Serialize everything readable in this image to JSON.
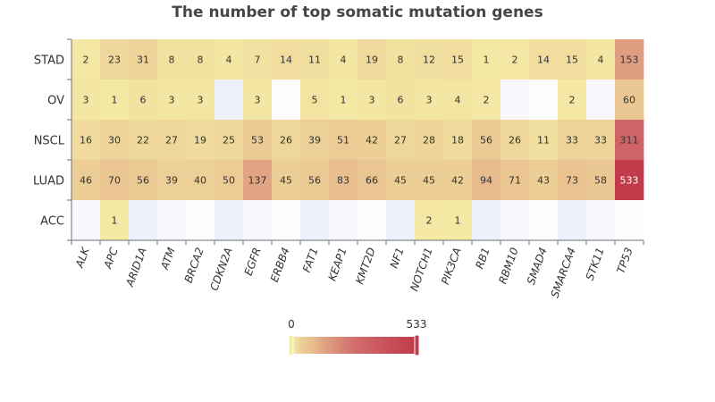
{
  "chart_data": {
    "type": "heatmap",
    "title": "The number of top somatic mutation genes",
    "x_categories": [
      "ALK",
      "APC",
      "ARID1A",
      "ATM",
      "BRCA2",
      "CDKN2A",
      "EGFR",
      "ERBB4",
      "FAT1",
      "KEAP1",
      "KMT2D",
      "NF1",
      "NOTCH1",
      "PIK3CA",
      "RB1",
      "RBM10",
      "SMAD4",
      "SMARCA4",
      "STK11",
      "TP53"
    ],
    "y_categories": [
      "STAD",
      "OV",
      "NSCL",
      "LUAD",
      "ACC"
    ],
    "values": [
      [
        2,
        23,
        31,
        8,
        8,
        4,
        7,
        14,
        11,
        4,
        19,
        8,
        12,
        15,
        1,
        2,
        14,
        15,
        4,
        153
      ],
      [
        3,
        1,
        6,
        3,
        3,
        null,
        3,
        null,
        5,
        1,
        3,
        6,
        3,
        4,
        2,
        null,
        null,
        2,
        null,
        60
      ],
      [
        16,
        30,
        22,
        27,
        19,
        25,
        53,
        26,
        39,
        51,
        42,
        27,
        28,
        18,
        56,
        26,
        11,
        33,
        33,
        311
      ],
      [
        46,
        70,
        56,
        39,
        40,
        50,
        137,
        45,
        56,
        83,
        66,
        45,
        45,
        42,
        94,
        71,
        43,
        73,
        58,
        533
      ],
      [
        null,
        1,
        null,
        null,
        null,
        null,
        null,
        null,
        null,
        null,
        null,
        null,
        2,
        1,
        null,
        null,
        null,
        null,
        null,
        null
      ]
    ],
    "visual_map": {
      "min": 0,
      "max": 533,
      "min_label": "0",
      "max_label": "533",
      "colors": [
        "#f5eca6",
        "#e8bd8d",
        "#d06b6b",
        "#c23b4b"
      ]
    },
    "empty_cell_colors": [
      "#eef0fb",
      "#f7f7fc",
      "#fcfcfd"
    ]
  }
}
